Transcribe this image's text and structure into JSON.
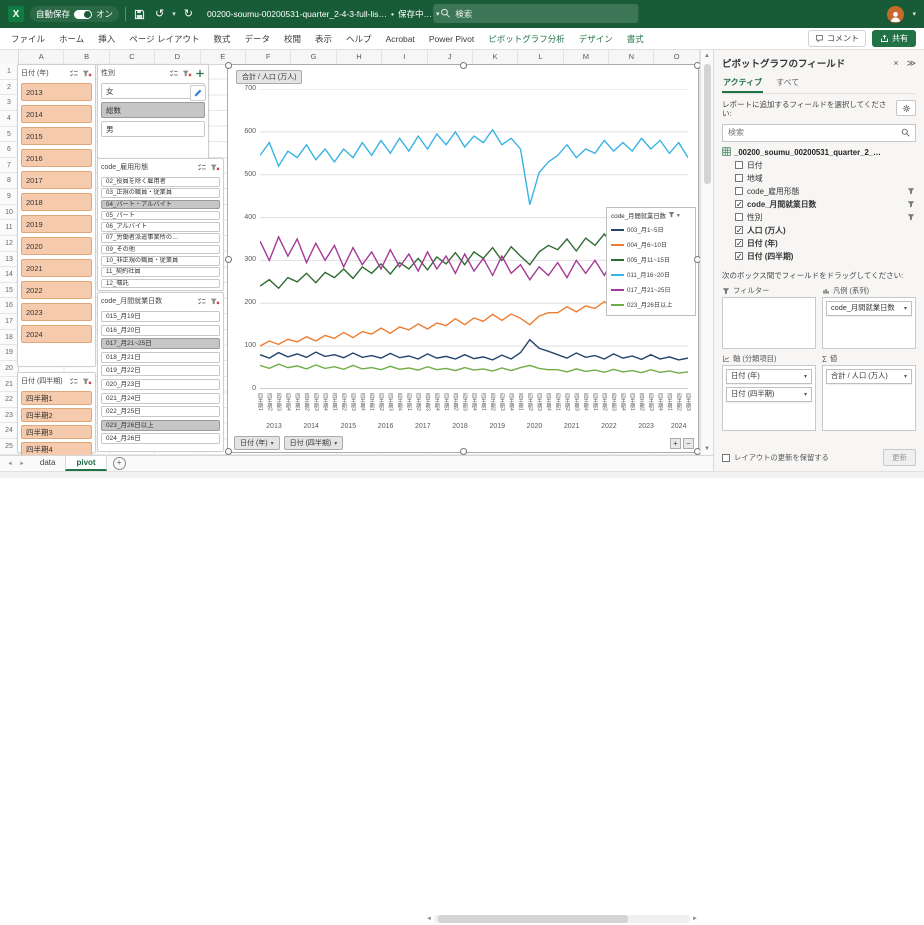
{
  "colors": {
    "titlebar_green": "#185C37",
    "excel_green": "#217346",
    "slicer_selected_peach": "#F6CBAD",
    "slicer_selected_gray": "#C6C6C6"
  },
  "titlebar": {
    "autosave_label": "自動保存",
    "autosave_state": "オン",
    "filename": "00200-soumu-00200531-quarter_2-4-3-full-lis…",
    "saving_status": "保存中…",
    "search_placeholder": "検索"
  },
  "ribbon": {
    "tabs": [
      {
        "label": "ファイル",
        "contextual": false
      },
      {
        "label": "ホーム",
        "contextual": false
      },
      {
        "label": "挿入",
        "contextual": false
      },
      {
        "label": "ページ レイアウト",
        "contextual": false
      },
      {
        "label": "数式",
        "contextual": false
      },
      {
        "label": "データ",
        "contextual": false
      },
      {
        "label": "校閲",
        "contextual": false
      },
      {
        "label": "表示",
        "contextual": false
      },
      {
        "label": "ヘルプ",
        "contextual": false
      },
      {
        "label": "Acrobat",
        "contextual": false
      },
      {
        "label": "Power Pivot",
        "contextual": false
      },
      {
        "label": "ピボットグラフ分析",
        "contextual": true
      },
      {
        "label": "デザイン",
        "contextual": true
      },
      {
        "label": "書式",
        "contextual": true
      }
    ],
    "comments_label": "コメント",
    "share_label": "共有"
  },
  "grid": {
    "columns": [
      "A",
      "B",
      "C",
      "D",
      "E",
      "F",
      "G",
      "H",
      "I",
      "J",
      "K",
      "L",
      "M",
      "N",
      "O"
    ],
    "row_count": 25
  },
  "slicers": [
    {
      "key": "date-year",
      "title": "日付 (年)",
      "theme": "peach",
      "items": [
        {
          "label": "2013",
          "selected": true
        },
        {
          "label": "2014",
          "selected": true
        },
        {
          "label": "2015",
          "selected": true
        },
        {
          "label": "2016",
          "selected": true
        },
        {
          "label": "2017",
          "selected": true
        },
        {
          "label": "2018",
          "selected": true
        },
        {
          "label": "2019",
          "selected": true
        },
        {
          "label": "2020",
          "selected": true
        },
        {
          "label": "2021",
          "selected": true
        },
        {
          "label": "2022",
          "selected": true
        },
        {
          "label": "2023",
          "selected": true
        },
        {
          "label": "2024",
          "selected": true
        }
      ]
    },
    {
      "key": "gender",
      "title": "性別",
      "theme": "gray",
      "items": [
        {
          "label": "女",
          "selected": false
        },
        {
          "label": "総数",
          "selected": true
        },
        {
          "label": "男",
          "selected": false
        }
      ]
    },
    {
      "key": "employment",
      "title": "code_雇用形態",
      "theme": "gray",
      "items": [
        {
          "label": "02_役員を除く雇用者",
          "selected": false
        },
        {
          "label": "03_正規の職員・従業員",
          "selected": false
        },
        {
          "label": "04_パート・アルバイト",
          "selected": true
        },
        {
          "label": "05_パート",
          "selected": false
        },
        {
          "label": "06_アルバイト",
          "selected": false
        },
        {
          "label": "07_労働者派遣事業所の…",
          "selected": false
        },
        {
          "label": "09_その他",
          "selected": false
        },
        {
          "label": "10_非正規の職員・従業員",
          "selected": false
        },
        {
          "label": "11_契約社員",
          "selected": false
        },
        {
          "label": "12_嘱託",
          "selected": false
        }
      ]
    },
    {
      "key": "work-days",
      "title": "code_月間就業日数",
      "theme": "gray",
      "items": [
        {
          "label": "015_月19日",
          "selected": false
        },
        {
          "label": "016_月20日",
          "selected": false
        },
        {
          "label": "017_月21~25日",
          "selected": true
        },
        {
          "label": "018_月21日",
          "selected": false
        },
        {
          "label": "019_月22日",
          "selected": false
        },
        {
          "label": "020_月23日",
          "selected": false
        },
        {
          "label": "021_月24日",
          "selected": false
        },
        {
          "label": "022_月25日",
          "selected": false
        },
        {
          "label": "023_月26日以上",
          "selected": true
        },
        {
          "label": "024_月26日",
          "selected": false
        }
      ]
    },
    {
      "key": "date-quarter",
      "title": "日付 (四半期)",
      "theme": "peach",
      "items": [
        {
          "label": "四半期1",
          "selected": true
        },
        {
          "label": "四半期2",
          "selected": true
        },
        {
          "label": "四半期3",
          "selected": true
        },
        {
          "label": "四半期4",
          "selected": true
        }
      ]
    }
  ],
  "chart": {
    "value_button": "合計 / 人口 (万人)",
    "axis_buttons": [
      "日付 (年)",
      "日付 (四半期)"
    ],
    "legend_title": "code_月間就業日数"
  },
  "chart_data": {
    "type": "line",
    "title": "合計 / 人口 (万人)",
    "ylabel": "",
    "xlabel": "",
    "ylim": [
      0,
      700
    ],
    "ytick_step": 100,
    "grid": true,
    "legend_position": "right-overlay",
    "legend_title": "code_月間就業日数",
    "years": [
      2013,
      2014,
      2015,
      2016,
      2017,
      2018,
      2019,
      2020,
      2021,
      2022,
      2023,
      2024
    ],
    "points_per_year": [
      4,
      4,
      4,
      4,
      4,
      4,
      4,
      4,
      4,
      4,
      4,
      3
    ],
    "quarter_labels": [
      "四半期1",
      "四半期2",
      "四半期3",
      "四半期4"
    ],
    "series": [
      {
        "name": "003_月1~5日",
        "color": "#24466B",
        "values": [
          80,
          72,
          85,
          75,
          82,
          74,
          86,
          76,
          80,
          73,
          84,
          74,
          78,
          72,
          83,
          73,
          77,
          70,
          82,
          72,
          76,
          70,
          80,
          71,
          75,
          68,
          79,
          70,
          85,
          115,
          95,
          88,
          80,
          72,
          84,
          74,
          78,
          70,
          82,
          72,
          77,
          69,
          80,
          70,
          75,
          68,
          72
        ]
      },
      {
        "name": "004_月6~10日",
        "color": "#ED7D31",
        "values": [
          100,
          112,
          104,
          116,
          110,
          122,
          112,
          125,
          118,
          132,
          120,
          134,
          128,
          142,
          130,
          145,
          138,
          152,
          140,
          154,
          148,
          164,
          150,
          166,
          158,
          174,
          160,
          175,
          165,
          150,
          170,
          178,
          178,
          192,
          180,
          194,
          188,
          204,
          190,
          206,
          198,
          215,
          200,
          218,
          210,
          228,
          235
        ]
      },
      {
        "name": "005_月11~15日",
        "color": "#2F6C33",
        "values": [
          240,
          255,
          235,
          260,
          250,
          270,
          248,
          272,
          260,
          280,
          258,
          285,
          270,
          292,
          268,
          295,
          280,
          305,
          278,
          308,
          292,
          318,
          290,
          320,
          305,
          330,
          300,
          332,
          310,
          290,
          320,
          335,
          325,
          350,
          322,
          352,
          335,
          362,
          332,
          365,
          345,
          375,
          342,
          378,
          355,
          388,
          368
        ]
      },
      {
        "name": "011_月16~20日",
        "color": "#38B3E3",
        "values": [
          545,
          575,
          520,
          555,
          540,
          570,
          535,
          560,
          530,
          560,
          540,
          575,
          545,
          580,
          550,
          585,
          555,
          590,
          560,
          595,
          570,
          600,
          565,
          590,
          575,
          605,
          570,
          585,
          560,
          430,
          505,
          530,
          545,
          570,
          540,
          560,
          550,
          580,
          555,
          575,
          555,
          585,
          560,
          580,
          550,
          575,
          540
        ]
      },
      {
        "name": "017_月21~25日",
        "color": "#A43A96",
        "values": [
          345,
          300,
          355,
          310,
          350,
          295,
          340,
          300,
          335,
          285,
          330,
          290,
          320,
          280,
          325,
          285,
          315,
          275,
          320,
          280,
          310,
          270,
          315,
          275,
          305,
          265,
          310,
          270,
          290,
          255,
          285,
          265,
          295,
          260,
          300,
          270,
          300,
          265,
          305,
          275,
          305,
          270,
          310,
          280,
          300,
          268,
          295
        ]
      },
      {
        "name": "023_月26日以上",
        "color": "#70AD47",
        "values": [
          55,
          48,
          58,
          50,
          54,
          47,
          56,
          48,
          52,
          46,
          55,
          47,
          50,
          45,
          53,
          46,
          49,
          44,
          52,
          45,
          48,
          43,
          50,
          44,
          47,
          42,
          49,
          43,
          50,
          55,
          48,
          45,
          45,
          40,
          47,
          41,
          44,
          39,
          46,
          40,
          43,
          38,
          45,
          39,
          42,
          37,
          40
        ]
      }
    ]
  },
  "panel": {
    "title": "ピボットグラフのフィールド",
    "tabs": [
      "アクティブ",
      "すべて"
    ],
    "active_tab": "アクティブ",
    "instruction": "レポートに追加するフィールドを選択してください:",
    "search_placeholder": "検索",
    "tree_root": "_00200_soumu_00200531_quarter_2_…",
    "fields": [
      {
        "label": "日付",
        "checked": false,
        "funnel": false
      },
      {
        "label": "地域",
        "checked": false,
        "funnel": false
      },
      {
        "label": "code_雇用形態",
        "checked": false,
        "funnel": true
      },
      {
        "label": "code_月間就業日数",
        "checked": true,
        "funnel": true
      },
      {
        "label": "性別",
        "checked": false,
        "funnel": true
      },
      {
        "label": "人口 (万人)",
        "checked": true,
        "funnel": false
      },
      {
        "label": "日付 (年)",
        "checked": true,
        "funnel": false
      },
      {
        "label": "日付 (四半期)",
        "checked": true,
        "funnel": false
      }
    ],
    "drag_instruction": "次のボックス間でフィールドをドラッグしてください:",
    "areas": {
      "filter": {
        "label": "フィルター",
        "items": []
      },
      "legend": {
        "label": "凡例 (系列)",
        "items": [
          "code_月間就業日数"
        ]
      },
      "axis": {
        "label": "軸 (分類項目)",
        "items": [
          "日付 (年)",
          "日付 (四半期)"
        ]
      },
      "values": {
        "label": "値",
        "items": [
          "合計 / 人口 (万人)"
        ]
      }
    },
    "defer_label": "レイアウトの更新を保留する",
    "update_label": "更新"
  },
  "sheet_tabs": {
    "tabs": [
      "data",
      "pivot"
    ],
    "active": "pivot"
  }
}
